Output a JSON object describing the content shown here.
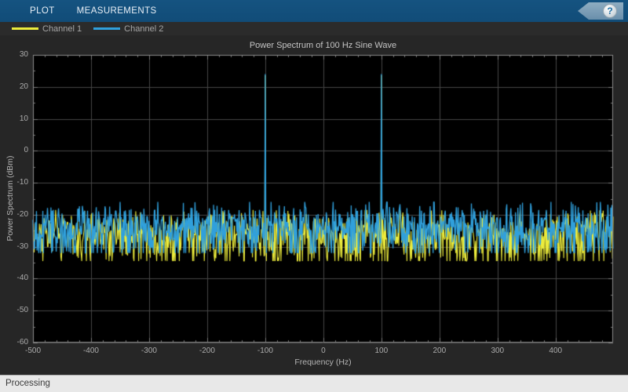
{
  "toolbar": {
    "tabs": [
      {
        "label": "PLOT"
      },
      {
        "label": "MEASUREMENTS"
      }
    ],
    "help_glyph": "?"
  },
  "legend": {
    "items": [
      {
        "label": "Channel 1",
        "color": "#ecec3c"
      },
      {
        "label": "Channel 2",
        "color": "#30a0dc"
      }
    ]
  },
  "status_bar": {
    "text": "Processing"
  },
  "colors": {
    "toolbar_bg": "#114c78",
    "panel_bg": "#262626",
    "axes_bg": "#000000",
    "grid": "#474747",
    "axis_border": "#8c8c8c",
    "tick_label": "#ababab"
  },
  "chart_data": {
    "type": "line",
    "title": "Power Spectrum of 100 Hz Sine Wave",
    "xlabel": "Frequency (Hz)",
    "ylabel": "Power Spectrum (dBm)",
    "xlim": [
      -500,
      499
    ],
    "ylim": [
      -60,
      30
    ],
    "x_major_ticks": [
      -500,
      -400,
      -300,
      -200,
      -100,
      0,
      100,
      200,
      300,
      400
    ],
    "y_major_ticks": [
      30,
      20,
      10,
      0,
      -10,
      -20,
      -30,
      -40,
      -50,
      -60
    ],
    "x_minor_step": 20,
    "y_minor_step": 5,
    "grid": true,
    "legend_position": "top-strip",
    "num_points": 1000,
    "noise_seed": 1337,
    "series": [
      {
        "name": "Channel 1",
        "color": "#ecec3c",
        "noise_floor_dbm": -25.0,
        "noise_band_db": [
          -31,
          -20
        ],
        "peaks": [
          {
            "freq_hz": -100,
            "power_dbm": 23.6
          },
          {
            "freq_hz": 100,
            "power_dbm": 23.6
          }
        ]
      },
      {
        "name": "Channel 2",
        "color": "#30a0dc",
        "noise_floor_dbm": -22.5,
        "noise_band_db": [
          -29,
          -17
        ],
        "peaks": [
          {
            "freq_hz": -100,
            "power_dbm": 24.0
          },
          {
            "freq_hz": 100,
            "power_dbm": 24.0
          }
        ]
      }
    ]
  }
}
